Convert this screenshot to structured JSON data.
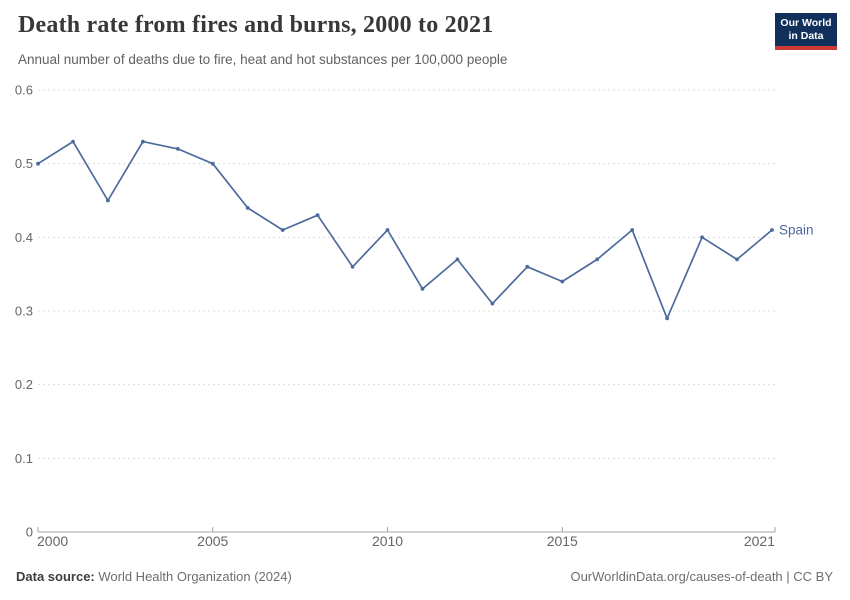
{
  "header": {
    "title": "Death rate from fires and burns, 2000 to 2021",
    "subtitle": "Annual number of deaths due to fire, heat and hot substances per 100,000 people",
    "logo": {
      "line1": "Our World",
      "line2": "in Data",
      "bg_color": "#12305c",
      "stripe_color": "#cc3b34"
    }
  },
  "chart_data": {
    "type": "line",
    "title": "Death rate from fires and burns, 2000 to 2021",
    "subtitle": "Annual number of deaths due to fire, heat and hot substances per 100,000 people",
    "xlabel": "",
    "ylabel": "",
    "xlim": [
      2000,
      2021
    ],
    "ylim": [
      0,
      0.6
    ],
    "grid": "horizontal-dashed",
    "legend_position": "end-of-line-label",
    "x": [
      2000,
      2001,
      2002,
      2003,
      2004,
      2005,
      2006,
      2007,
      2008,
      2009,
      2010,
      2011,
      2012,
      2013,
      2014,
      2015,
      2016,
      2017,
      2018,
      2019,
      2020,
      2021
    ],
    "series": [
      {
        "name": "Spain",
        "values": [
          0.5,
          0.53,
          0.45,
          0.53,
          0.52,
          0.5,
          0.44,
          0.41,
          0.43,
          0.36,
          0.41,
          0.33,
          0.37,
          0.31,
          0.36,
          0.34,
          0.37,
          0.41,
          0.29,
          0.4,
          0.37,
          0.41
        ]
      }
    ],
    "xticks": [
      {
        "v": 2000,
        "label": "2000"
      },
      {
        "v": 2005,
        "label": "2005"
      },
      {
        "v": 2010,
        "label": "2010"
      },
      {
        "v": 2015,
        "label": "2015"
      },
      {
        "v": 2021,
        "label": "2021"
      }
    ],
    "yticks": [
      {
        "v": 0,
        "label": "0"
      },
      {
        "v": 0.1,
        "label": "0.1"
      },
      {
        "v": 0.2,
        "label": "0.2"
      },
      {
        "v": 0.3,
        "label": "0.3"
      },
      {
        "v": 0.4,
        "label": "0.4"
      },
      {
        "v": 0.5,
        "label": "0.5"
      },
      {
        "v": 0.6,
        "label": "0.6"
      }
    ],
    "colors": {
      "line": "#4c6a9c",
      "grid": "#dcdcdc",
      "axis": "#a5a5a5",
      "tick_label": "#666666"
    }
  },
  "footer": {
    "source_label": "Data source:",
    "source_value": " World Health Organization (2024)",
    "credit": "OurWorldinData.org/causes-of-death | CC BY"
  }
}
